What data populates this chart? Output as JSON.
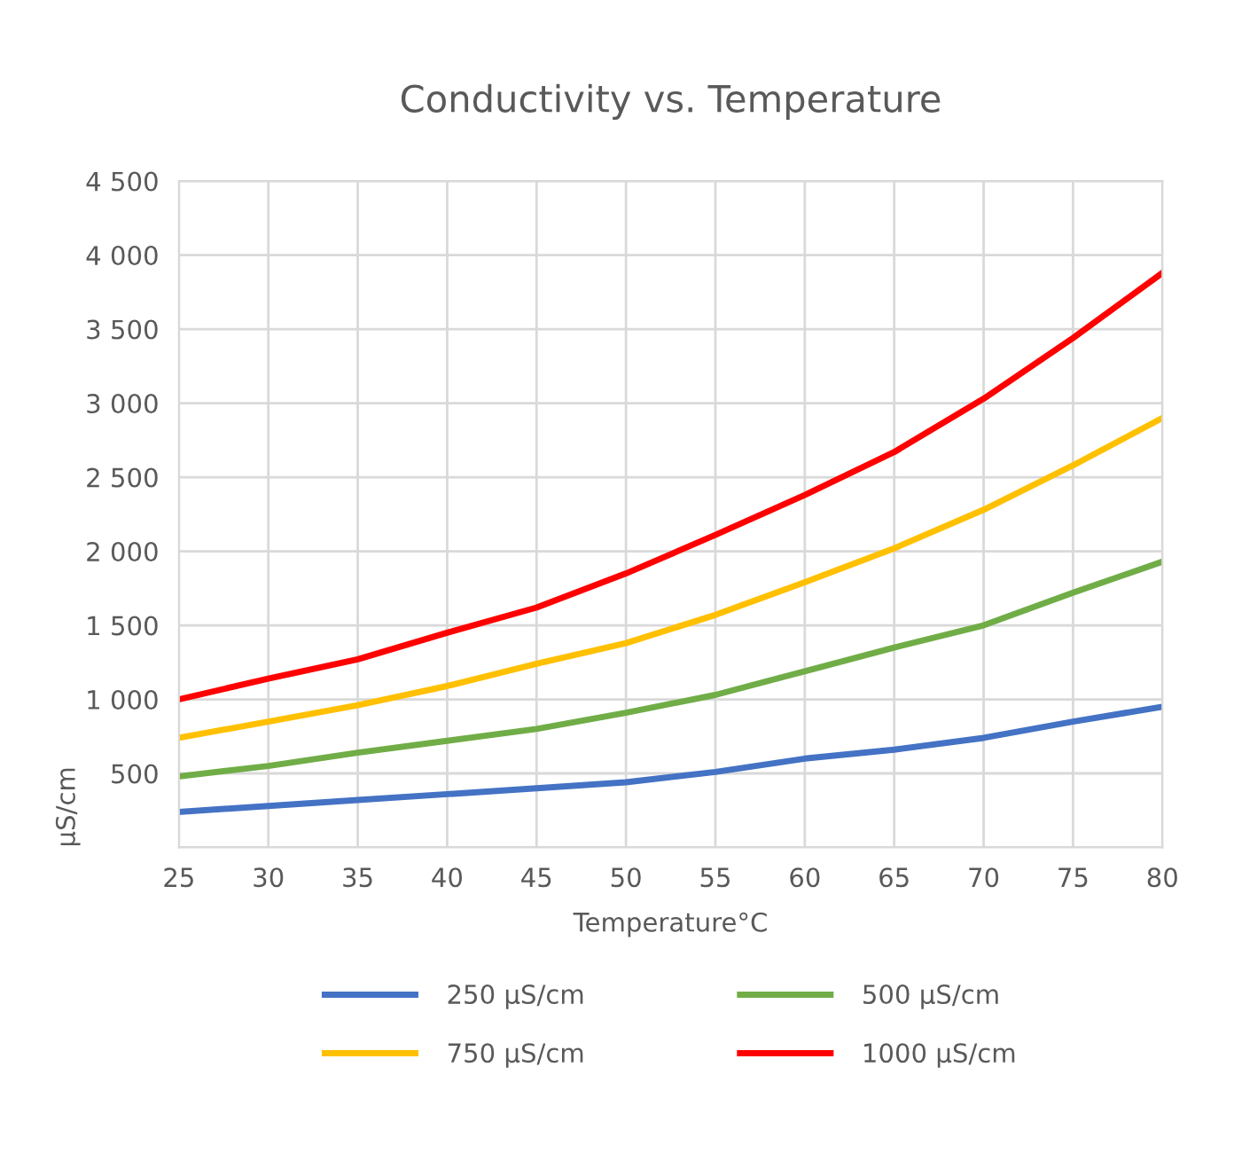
{
  "chart_data": {
    "type": "line",
    "title": "Conductivity vs. Temperature",
    "xlabel": "Temperature°C",
    "ylabel": "µS/cm",
    "x": [
      25,
      30,
      35,
      40,
      45,
      50,
      55,
      60,
      65,
      70,
      75,
      80
    ],
    "series": [
      {
        "name": "250 µS/cm",
        "color": "#4472c4",
        "values": [
          240,
          280,
          320,
          360,
          400,
          440,
          510,
          600,
          660,
          740,
          850,
          950
        ]
      },
      {
        "name": "500 µS/cm",
        "color": "#70ad47",
        "values": [
          480,
          550,
          640,
          720,
          800,
          910,
          1030,
          1190,
          1350,
          1500,
          1720,
          1930
        ]
      },
      {
        "name": "750 µS/cm",
        "color": "#ffc000",
        "values": [
          740,
          850,
          960,
          1090,
          1240,
          1380,
          1570,
          1790,
          2020,
          2280,
          2580,
          2900
        ]
      },
      {
        "name": "1000 µS/cm",
        "color": "#ff0000",
        "values": [
          1000,
          1140,
          1270,
          1450,
          1620,
          1850,
          2110,
          2380,
          2670,
          3030,
          3440,
          3880
        ]
      }
    ],
    "xlim": [
      25,
      80
    ],
    "xticks": [
      25,
      30,
      35,
      40,
      45,
      50,
      55,
      60,
      65,
      70,
      75,
      80
    ],
    "ylim": [
      0,
      4500
    ],
    "yticks": [
      {
        "value": 0,
        "label": null
      },
      {
        "value": 500,
        "label": "500"
      },
      {
        "value": 1000,
        "label": "1 000"
      },
      {
        "value": 1500,
        "label": "1 500"
      },
      {
        "value": 2000,
        "label": "2 000"
      },
      {
        "value": 2500,
        "label": "2 500"
      },
      {
        "value": 3000,
        "label": "3 000"
      },
      {
        "value": 3500,
        "label": "3 500"
      },
      {
        "value": 4000,
        "label": "4 000"
      },
      {
        "value": 4500,
        "label": "4 500"
      }
    ],
    "grid": true,
    "legend": "bottom",
    "marker": "none",
    "line_style": "solid"
  }
}
